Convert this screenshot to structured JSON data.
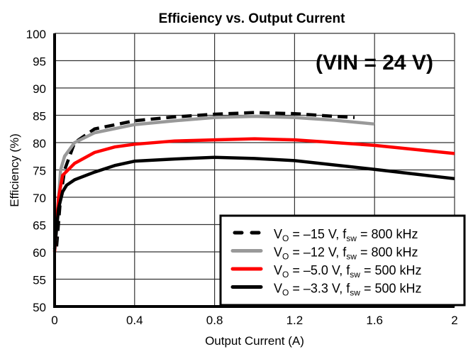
{
  "chart_data": {
    "type": "line",
    "title": "Efficiency vs. Output Current",
    "annotation": "(VIN = 24 V)",
    "xlabel": "Output Current (A)",
    "ylabel": "Efficiency (%)",
    "xlim": [
      0,
      2
    ],
    "ylim": [
      50,
      100
    ],
    "xticks": [
      0,
      0.4,
      0.8,
      1.2,
      1.6,
      2
    ],
    "xtick_labels": [
      "0",
      "0.4",
      "0.8",
      "1.2",
      "1.6",
      "2"
    ],
    "yticks": [
      50,
      55,
      60,
      65,
      70,
      75,
      80,
      85,
      90,
      95,
      100
    ],
    "ytick_labels": [
      "50",
      "55",
      "60",
      "65",
      "70",
      "75",
      "80",
      "85",
      "90",
      "95",
      "100"
    ],
    "grid": true,
    "legend_position": "bottom-right",
    "series": [
      {
        "name": "VO = –15 V, fsw = 800 kHz",
        "vo": "–15 V",
        "fsw": "800 kHz",
        "color": "#000000",
        "style": "dashed",
        "x": [
          0.01,
          0.03,
          0.05,
          0.1,
          0.2,
          0.4,
          0.6,
          0.8,
          1.0,
          1.2,
          1.4,
          1.5
        ],
        "y": [
          61,
          70,
          75,
          80,
          82.5,
          84,
          84.7,
          85.2,
          85.5,
          85.3,
          84.8,
          84.6
        ]
      },
      {
        "name": "VO = –12 V, fsw = 800 kHz",
        "vo": "–12 V",
        "fsw": "800 kHz",
        "color": "#999999",
        "style": "solid",
        "x": [
          0.005,
          0.03,
          0.05,
          0.1,
          0.2,
          0.4,
          0.6,
          0.8,
          1.0,
          1.2,
          1.4,
          1.6
        ],
        "y": [
          62,
          75,
          77.5,
          80,
          81.8,
          83.3,
          84,
          84.6,
          84.8,
          84.6,
          84.1,
          83.4
        ]
      },
      {
        "name": "VO = –5.0 V, fsw = 500 kHz",
        "vo": "–5.0 V",
        "fsw": "500 kHz",
        "color": "#ff0000",
        "style": "solid",
        "x": [
          0,
          0.02,
          0.04,
          0.1,
          0.2,
          0.3,
          0.4,
          0.6,
          0.8,
          1.0,
          1.2,
          1.6,
          2.0
        ],
        "y": [
          60,
          70,
          74,
          76.2,
          78.2,
          79.2,
          79.7,
          80.3,
          80.5,
          80.7,
          80.5,
          79.5,
          78
        ]
      },
      {
        "name": "VO = –3.3 V, fsw = 500 kHz",
        "vo": "–3.3 V",
        "fsw": "500 kHz",
        "color": "#000000",
        "style": "solid",
        "x": [
          0,
          0.02,
          0.04,
          0.06,
          0.1,
          0.2,
          0.3,
          0.4,
          0.6,
          0.8,
          1.0,
          1.2,
          1.6,
          2.0
        ],
        "y": [
          60.5,
          68,
          71,
          72.2,
          73.2,
          74.6,
          75.8,
          76.6,
          77,
          77.3,
          77.1,
          76.7,
          75.1,
          73.4
        ]
      }
    ]
  }
}
